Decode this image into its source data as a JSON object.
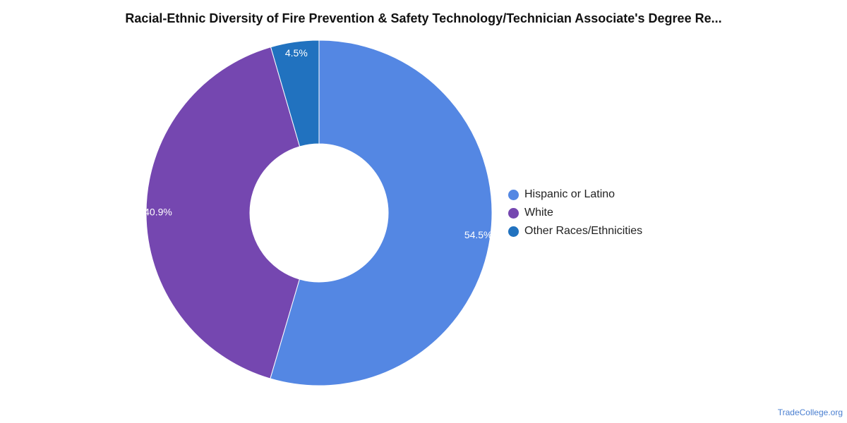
{
  "chart_data": {
    "type": "pie",
    "title": "Racial-Ethnic Diversity of Fire Prevention & Safety Technology/Technician Associate's Degree Re...",
    "donut": true,
    "categories": [
      "Hispanic or Latino",
      "White",
      "Other Races/Ethnicities"
    ],
    "values": [
      54.5,
      40.9,
      4.5
    ],
    "labels": [
      "54.5%",
      "40.9%",
      "4.5%"
    ],
    "colors": [
      "#5487e3",
      "#7547b0",
      "#2172bf"
    ],
    "legend_position": "right"
  },
  "footer": {
    "credit": "TradeCollege.org"
  }
}
